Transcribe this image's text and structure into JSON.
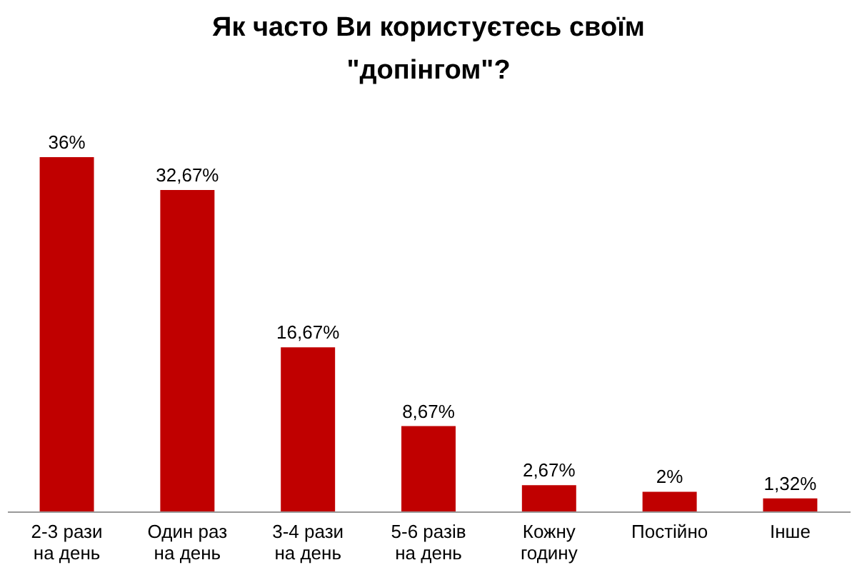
{
  "chart_data": {
    "type": "bar",
    "title": "Як часто Ви користуєтесь своїм\n\"допінгом\"?",
    "categories": [
      "2-3 рази\nна день",
      "Один раз\nна день",
      "3-4 рази\nна день",
      "5-6 разів\nна день",
      "Кожну\nгодину",
      "Постійно",
      "Інше"
    ],
    "values": [
      36,
      32.67,
      16.67,
      8.67,
      2.67,
      2,
      1.32
    ],
    "value_labels": [
      "36%",
      "32,67%",
      "16,67%",
      "8,67%",
      "2,67%",
      "2%",
      "1,32%"
    ],
    "color": "#c00000"
  }
}
